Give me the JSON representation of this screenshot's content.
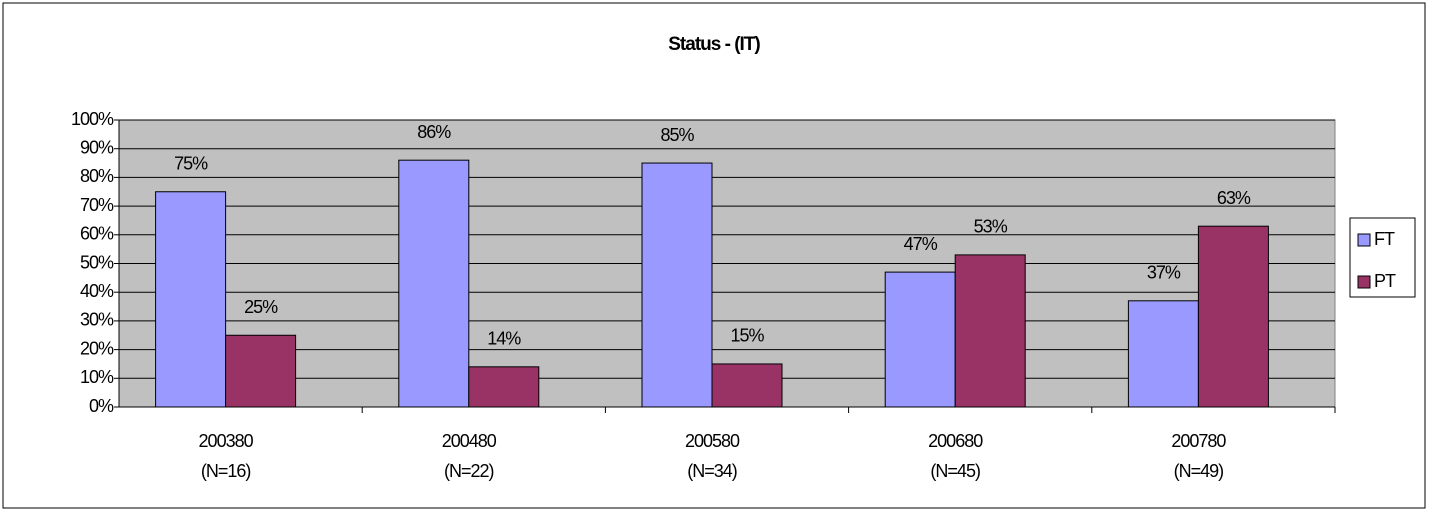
{
  "chart_data": {
    "type": "bar",
    "title": "Status -  (IT)",
    "categories": [
      "200380\n(N=16)",
      "200480\n(N=22)",
      "200580\n(N=34)",
      "200680\n(N=45)",
      "200780\n(N=49)"
    ],
    "series": [
      {
        "name": "FT",
        "color": "#9999ff",
        "values": [
          75,
          86,
          85,
          47,
          37
        ],
        "value_labels": [
          "75%",
          "86%",
          "85%",
          "47%",
          "37%"
        ]
      },
      {
        "name": "PT",
        "color": "#993366",
        "values": [
          25,
          14,
          15,
          53,
          63
        ],
        "value_labels": [
          "25%",
          "14%",
          "15%",
          "53%",
          "63%"
        ]
      }
    ],
    "ylim": [
      0,
      100
    ],
    "yticks": [
      {
        "value": 0,
        "label": "0%"
      },
      {
        "value": 10,
        "label": "10%"
      },
      {
        "value": 20,
        "label": "20%"
      },
      {
        "value": 30,
        "label": "30%"
      },
      {
        "value": 40,
        "label": "40%"
      },
      {
        "value": 50,
        "label": "50%"
      },
      {
        "value": 60,
        "label": "60%"
      },
      {
        "value": 70,
        "label": "70%"
      },
      {
        "value": 80,
        "label": "80%"
      },
      {
        "value": 90,
        "label": "90%"
      },
      {
        "value": 100,
        "label": "100%"
      }
    ],
    "grid": true,
    "legend": "right"
  }
}
